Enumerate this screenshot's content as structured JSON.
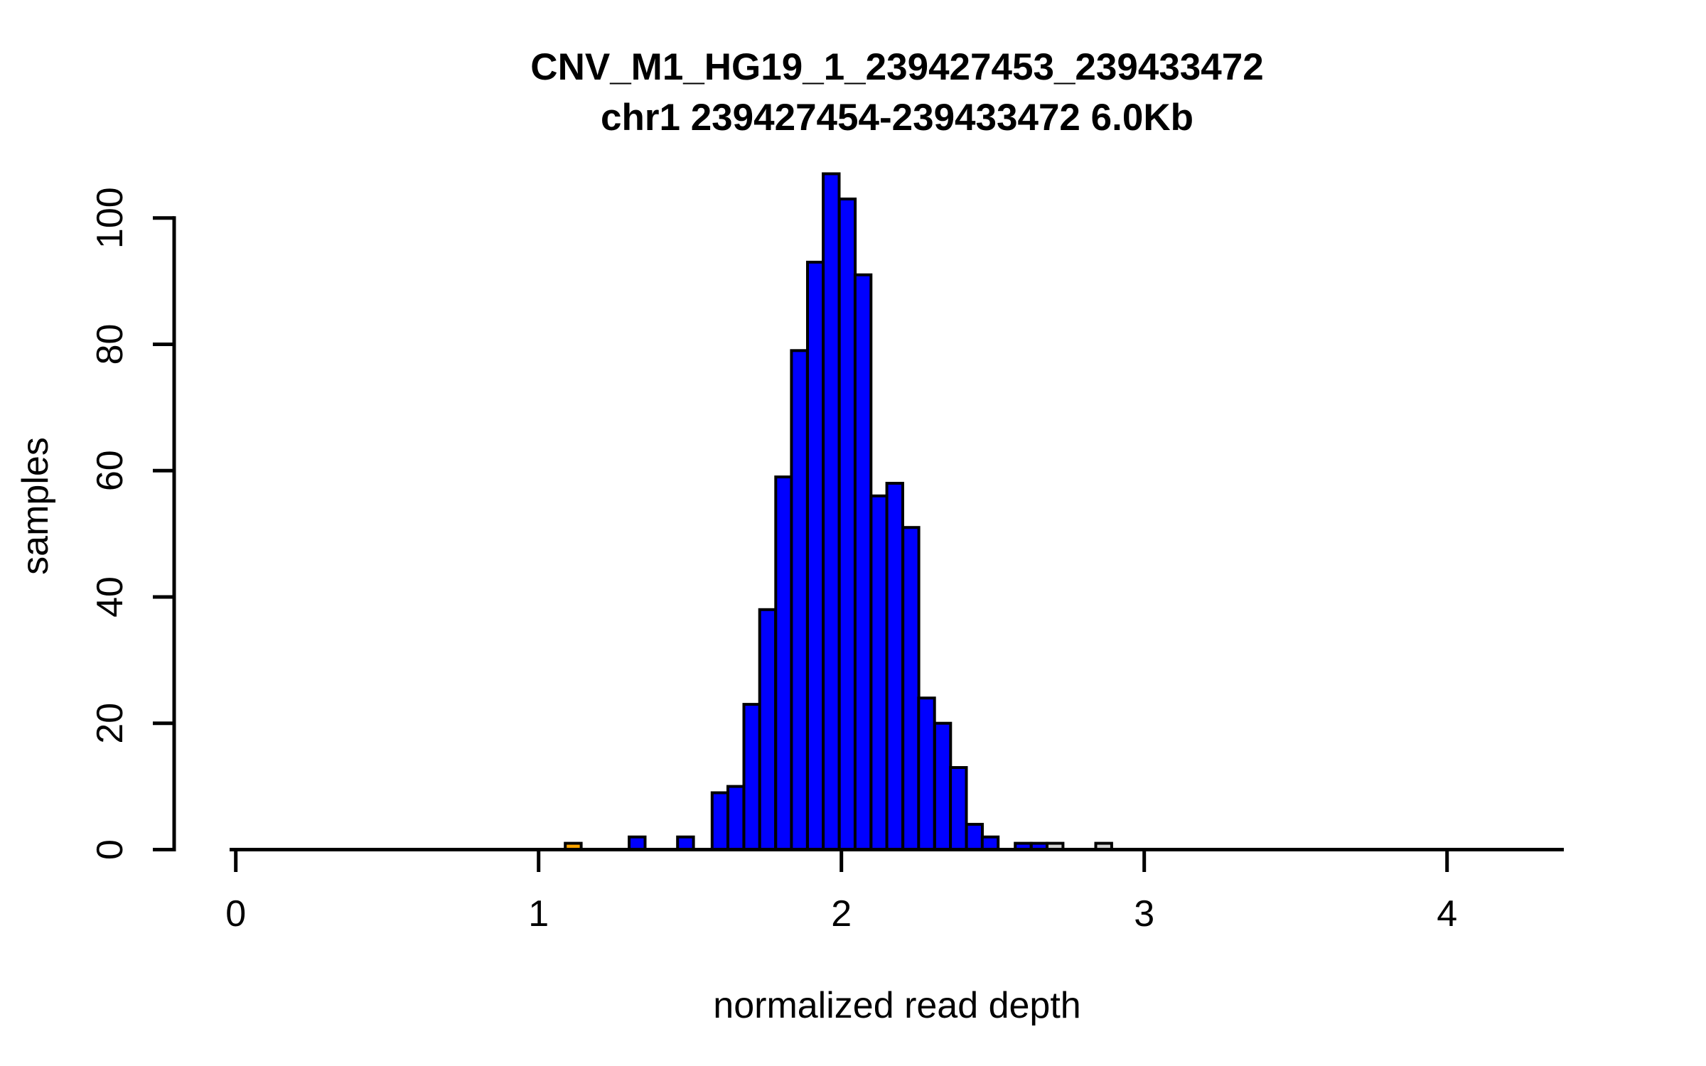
{
  "chart_data": {
    "type": "bar",
    "subtype": "histogram",
    "title": "CNV_M1_HG19_1_239427453_239433472",
    "subtitle": "chr1 239427454-239433472 6.0Kb",
    "xlabel": "normalized read depth",
    "ylabel": "samples",
    "x_ticks": [
      0,
      1,
      2,
      3,
      4
    ],
    "y_ticks": [
      0,
      20,
      40,
      60,
      80,
      100
    ],
    "xlim": [
      -0.02,
      4.39
    ],
    "ylim": [
      0,
      107
    ],
    "bin_width": 0.0525,
    "grid": false,
    "legend": false,
    "total_samples": 849,
    "colors": {
      "blue": "#0000FF",
      "orange": "#FFA500",
      "gray": "#D3D3D3",
      "axis": "#000000",
      "background": "#FFFFFF"
    },
    "bars": [
      {
        "x": 1.088,
        "count": 1,
        "color": "orange"
      },
      {
        "x": 1.299,
        "count": 2,
        "color": "blue"
      },
      {
        "x": 1.459,
        "count": 2,
        "color": "blue"
      },
      {
        "x": 1.573,
        "count": 9,
        "color": "blue"
      },
      {
        "x": 1.625,
        "count": 10,
        "color": "blue"
      },
      {
        "x": 1.678,
        "count": 23,
        "color": "blue"
      },
      {
        "x": 1.73,
        "count": 38,
        "color": "blue"
      },
      {
        "x": 1.783,
        "count": 59,
        "color": "blue"
      },
      {
        "x": 1.835,
        "count": 79,
        "color": "blue"
      },
      {
        "x": 1.888,
        "count": 93,
        "color": "blue"
      },
      {
        "x": 1.94,
        "count": 107,
        "color": "blue"
      },
      {
        "x": 1.993,
        "count": 103,
        "color": "blue"
      },
      {
        "x": 2.045,
        "count": 91,
        "color": "blue"
      },
      {
        "x": 2.098,
        "count": 56,
        "color": "blue"
      },
      {
        "x": 2.15,
        "count": 58,
        "color": "blue"
      },
      {
        "x": 2.203,
        "count": 51,
        "color": "blue"
      },
      {
        "x": 2.255,
        "count": 24,
        "color": "blue"
      },
      {
        "x": 2.308,
        "count": 20,
        "color": "blue"
      },
      {
        "x": 2.36,
        "count": 13,
        "color": "blue"
      },
      {
        "x": 2.413,
        "count": 4,
        "color": "blue"
      },
      {
        "x": 2.465,
        "count": 2,
        "color": "blue"
      },
      {
        "x": 2.574,
        "count": 1,
        "color": "blue"
      },
      {
        "x": 2.627,
        "count": 1,
        "color": "blue"
      },
      {
        "x": 2.679,
        "count": 1,
        "color": "gray"
      },
      {
        "x": 2.84,
        "count": 1,
        "color": "gray"
      }
    ]
  }
}
